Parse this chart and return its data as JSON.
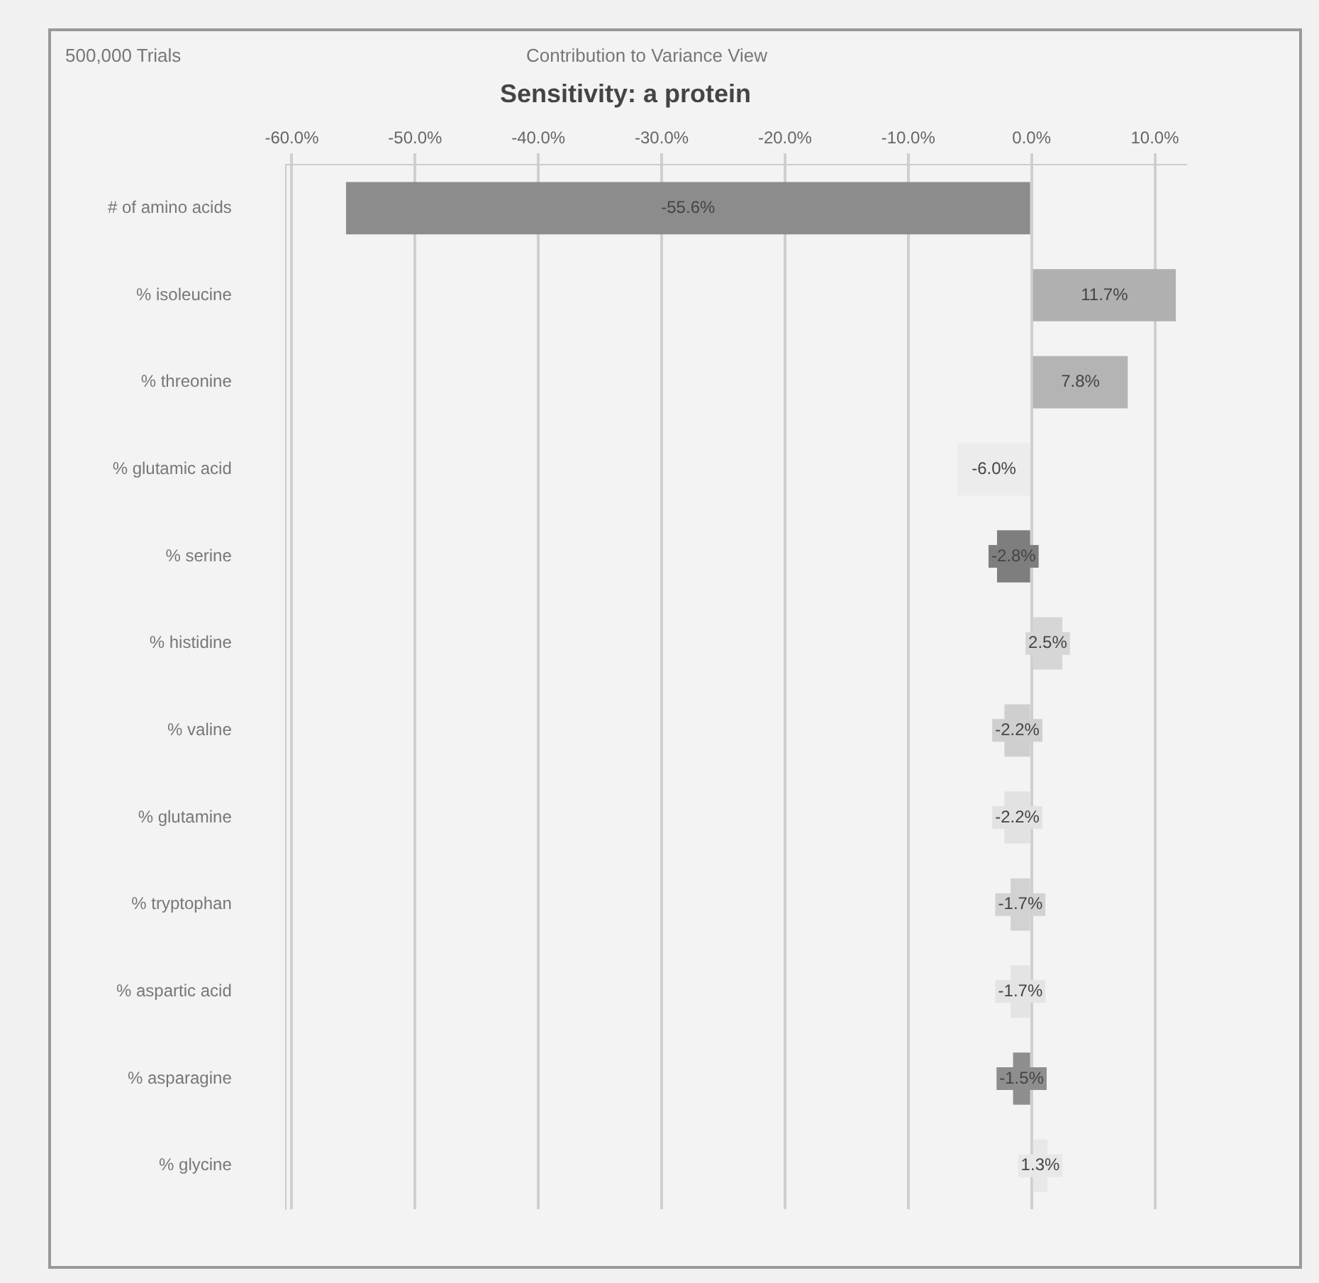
{
  "chart_data": {
    "type": "bar",
    "orientation": "horizontal",
    "title": "Sensitivity: a protein",
    "annotations": [
      "500,000 Trials",
      "Contribution to Variance View"
    ],
    "categories": [
      "# of amino acids",
      "% isoleucine",
      "% threonine",
      "% glutamic acid",
      "% serine",
      "% histidine",
      "% valine",
      "% glutamine",
      "% tryptophan",
      "% aspartic acid",
      "% asparagine",
      "% glycine"
    ],
    "values": [
      -55.6,
      11.7,
      7.8,
      -6.0,
      -2.8,
      2.5,
      -2.2,
      -2.2,
      -1.7,
      -1.7,
      -1.5,
      1.3
    ],
    "colors": [
      "#8c8c8c",
      "#b0b0b0",
      "#b4b4b4",
      "#ececec",
      "#7e7e7e",
      "#d6d6d6",
      "#cfcfcf",
      "#e2e2e2",
      "#d2d2d2",
      "#e4e4e4",
      "#8e8e8e",
      "#e8e8e8"
    ],
    "value_labels": [
      "-55.6%",
      "11.7%",
      "7.8%",
      "-6.0%",
      "-2.8%",
      "2.5%",
      "-2.2%",
      "-2.2%",
      "-1.7%",
      "-1.7%",
      "-1.5%",
      "1.3%"
    ],
    "xlim": [
      -60.5,
      12.5
    ],
    "xticks": [
      {
        "value": -60,
        "label": "-60.0%"
      },
      {
        "value": -50,
        "label": "-50.0%"
      },
      {
        "value": -40,
        "label": "-40.0%"
      },
      {
        "value": -30,
        "label": "-30.0%"
      },
      {
        "value": -20,
        "label": "-20.0%"
      },
      {
        "value": -10,
        "label": "-10.0%"
      },
      {
        "value": 0,
        "label": "0.0%"
      },
      {
        "value": 10,
        "label": "10.0%"
      }
    ],
    "grid": "x"
  }
}
